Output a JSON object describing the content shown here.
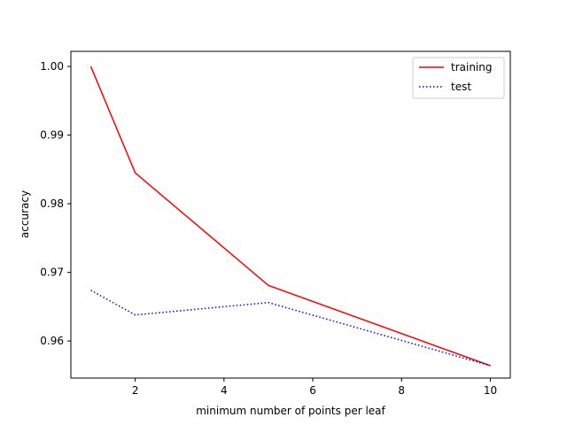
{
  "chart_data": {
    "type": "line",
    "title": "",
    "xlabel": "minimum number of points per leaf",
    "ylabel": "accuracy",
    "xlim": [
      0.55,
      10.45
    ],
    "ylim": [
      0.9546,
      1.0022
    ],
    "xticks": [
      2,
      4,
      6,
      8,
      10
    ],
    "xtick_labels": [
      "2",
      "4",
      "6",
      "8",
      "10"
    ],
    "yticks": [
      0.96,
      0.97,
      0.98,
      0.99,
      1.0
    ],
    "ytick_labels": [
      "0.96",
      "0.97",
      "0.98",
      "0.99",
      "1.00"
    ],
    "grid": false,
    "legend_position": "top-right",
    "series": [
      {
        "name": "training",
        "color": "#ff0000",
        "linestyle": "solid",
        "x": [
          1,
          2,
          5,
          10
        ],
        "y": [
          1.0,
          0.9845,
          0.9681,
          0.9564
        ]
      },
      {
        "name": "test",
        "color": "#0000ff",
        "linestyle": "dotted",
        "x": [
          1,
          2,
          5,
          10
        ],
        "y": [
          0.9674,
          0.9638,
          0.9656,
          0.9564
        ]
      }
    ]
  }
}
